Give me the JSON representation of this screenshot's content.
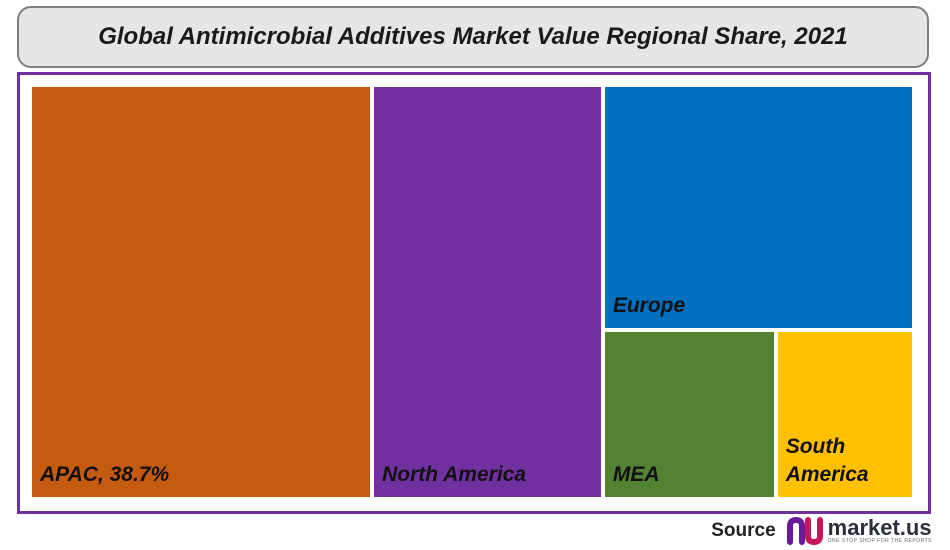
{
  "title": "Global Antimicrobial Additives Market Value Regional Share, 2021",
  "source": {
    "label": "Source",
    "brand": "market.us",
    "tagline": "ONE STOP SHOP FOR THE REPORTS"
  },
  "colors": {
    "frame": "#7030a0",
    "apac": "#c55a11",
    "north_america": "#7030a0",
    "europe": "#0070c0",
    "mea": "#548235",
    "south_america": "#ffc000"
  },
  "chart_data": {
    "type": "treemap",
    "title": "Global Antimicrobial Additives Market Value Regional Share, 2021",
    "items": [
      {
        "name": "APAC",
        "label": "APAC, 38.7%",
        "value": 38.7,
        "color": "#c55a11"
      },
      {
        "name": "North America",
        "label": "North America",
        "value": 26.1,
        "color": "#7030a0"
      },
      {
        "name": "Europe",
        "label": "Europe",
        "value": 20.8,
        "color": "#0070c0"
      },
      {
        "name": "MEA",
        "label": "MEA",
        "value": 8.0,
        "color": "#548235"
      },
      {
        "name": "South America",
        "label": "South\nAmerica",
        "value": 6.4,
        "color": "#ffc000"
      }
    ]
  }
}
